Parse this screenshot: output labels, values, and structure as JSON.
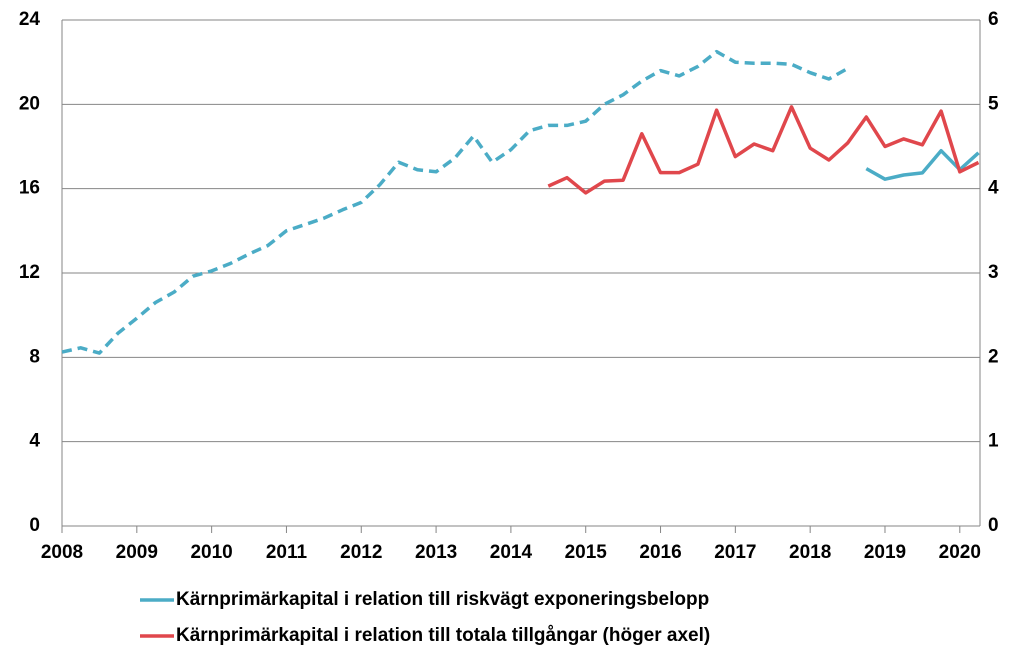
{
  "chart_data": {
    "type": "line",
    "x": [
      2008,
      2008.25,
      2008.5,
      2008.75,
      2009,
      2009.25,
      2009.5,
      2009.75,
      2010,
      2010.25,
      2010.5,
      2010.75,
      2011,
      2011.25,
      2011.5,
      2011.75,
      2012,
      2012.25,
      2012.5,
      2012.75,
      2013,
      2013.25,
      2013.5,
      2013.75,
      2014,
      2014.25,
      2014.5,
      2014.75,
      2015,
      2015.25,
      2015.5,
      2015.75,
      2016,
      2016.25,
      2016.5,
      2016.75,
      2017,
      2017.25,
      2017.5,
      2017.75,
      2018,
      2018.25,
      2018.5,
      2018.75,
      2019,
      2019.25,
      2019.5,
      2019.75,
      2020,
      2020.25
    ],
    "series": [
      {
        "name": "Kärnprimärkapital i relation till riskvägt exponeringsbelopp",
        "color": "#4bacc6",
        "dashed_through_x": 2018.5,
        "values": [
          8.25,
          8.45,
          8.2,
          9.15,
          9.85,
          10.6,
          11.1,
          11.85,
          12.1,
          12.45,
          12.9,
          13.3,
          14.0,
          14.3,
          14.6,
          15.0,
          15.35,
          16.2,
          17.25,
          16.9,
          16.8,
          17.45,
          18.5,
          17.25,
          17.85,
          18.75,
          19.0,
          19.0,
          19.2,
          20.0,
          20.45,
          21.1,
          21.6,
          21.35,
          21.8,
          22.5,
          22.0,
          21.95,
          21.95,
          21.9,
          21.5,
          21.2,
          21.7,
          16.95,
          16.45,
          16.65,
          16.75,
          17.8,
          16.9,
          17.7
        ]
      },
      {
        "name": "Kärnprimärkapital i relation till totala tillgångar (höger axel)",
        "color": "#e0474c",
        "axis": "y2",
        "values": [
          null,
          null,
          null,
          null,
          null,
          null,
          null,
          null,
          null,
          null,
          null,
          null,
          null,
          null,
          null,
          null,
          null,
          null,
          null,
          null,
          null,
          null,
          null,
          null,
          null,
          null,
          4.03,
          4.13,
          3.95,
          4.09,
          4.1,
          4.65,
          4.19,
          4.19,
          4.29,
          4.93,
          4.38,
          4.53,
          4.45,
          4.97,
          4.48,
          4.34,
          4.54,
          4.85,
          4.5,
          4.59,
          4.52,
          4.92,
          4.2,
          4.31
        ]
      }
    ],
    "xlim": [
      2008,
      2020.27
    ],
    "xticks": [
      2008,
      2009,
      2010,
      2011,
      2012,
      2013,
      2014,
      2015,
      2016,
      2017,
      2018,
      2019,
      2020
    ],
    "ylim": [
      0,
      24
    ],
    "yticks": [
      0,
      4,
      8,
      12,
      16,
      20,
      24
    ],
    "y2lim": [
      0,
      6
    ],
    "y2ticks": [
      0,
      1,
      2,
      3,
      4,
      5,
      6
    ],
    "grid": true,
    "legend": "bottom"
  }
}
